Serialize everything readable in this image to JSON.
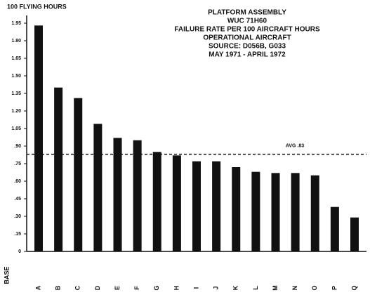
{
  "chart_data": {
    "type": "bar",
    "title": [
      "PLATFORM ASSEMBLY",
      "WUC 71H60",
      "FAILURE RATE PER 100 AIRCRAFT HOURS",
      "OPERATIONAL AIRCRAFT",
      "SOURCE: D056B, G033",
      "MAY 1971 - APRIL 1972"
    ],
    "y_label": "100 FLYING HOURS",
    "x_label": "BASE",
    "categories": [
      "A",
      "B",
      "C",
      "D",
      "E",
      "F",
      "G",
      "H",
      "I",
      "J",
      "K",
      "L",
      "M",
      "N",
      "O",
      "P",
      "Q"
    ],
    "values": [
      1.93,
      1.4,
      1.31,
      1.09,
      0.97,
      0.95,
      0.85,
      0.82,
      0.77,
      0.77,
      0.72,
      0.68,
      0.67,
      0.67,
      0.65,
      0.38,
      0.29
    ],
    "color": "#111111",
    "reference_line": {
      "value": 0.83,
      "label": "AVG .83"
    },
    "ylim": [
      0,
      1.95
    ],
    "yticks": [
      0,
      {
        "value": 0.15,
        "label": ".15"
      },
      {
        "value": 0.3,
        "label": ".30"
      },
      {
        "value": 0.45,
        "label": ".45"
      },
      {
        "value": 0.6,
        "label": ".60"
      },
      {
        "value": 0.75,
        "label": ".75"
      },
      {
        "value": 0.9,
        "label": ".90"
      },
      {
        "value": 1.05,
        "label": "1.05"
      },
      {
        "value": 1.2,
        "label": "1.20"
      },
      {
        "value": 1.35,
        "label": "1.35"
      },
      {
        "value": 1.5,
        "label": "1.50"
      },
      {
        "value": 1.65,
        "label": "1.65"
      },
      {
        "value": 1.8,
        "label": "1.80"
      },
      1.95
    ]
  }
}
